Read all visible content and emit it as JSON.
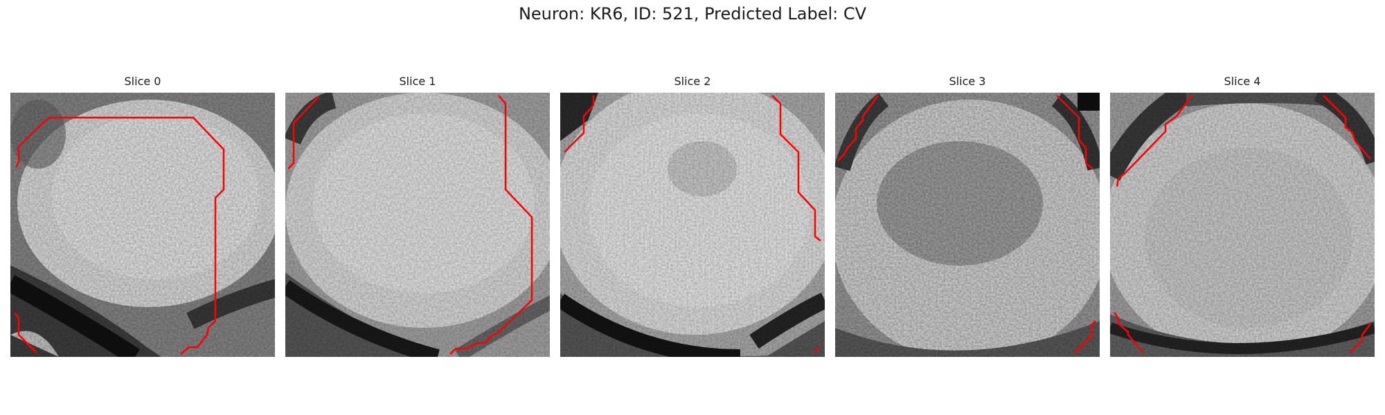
{
  "figure": {
    "title": "Neuron: KR6, ID: 521, Predicted Label: CV"
  },
  "panels": [
    {
      "title": "Slice 0",
      "icon": "grayscale-microscopy-slice",
      "contour_color": "#ff0000"
    },
    {
      "title": "Slice 1",
      "icon": "grayscale-microscopy-slice",
      "contour_color": "#ff0000"
    },
    {
      "title": "Slice 2",
      "icon": "grayscale-microscopy-slice",
      "contour_color": "#ff0000"
    },
    {
      "title": "Slice 3",
      "icon": "grayscale-microscopy-slice",
      "contour_color": "#ff0000"
    },
    {
      "title": "Slice 4",
      "icon": "grayscale-microscopy-slice",
      "contour_color": "#ff0000"
    }
  ]
}
